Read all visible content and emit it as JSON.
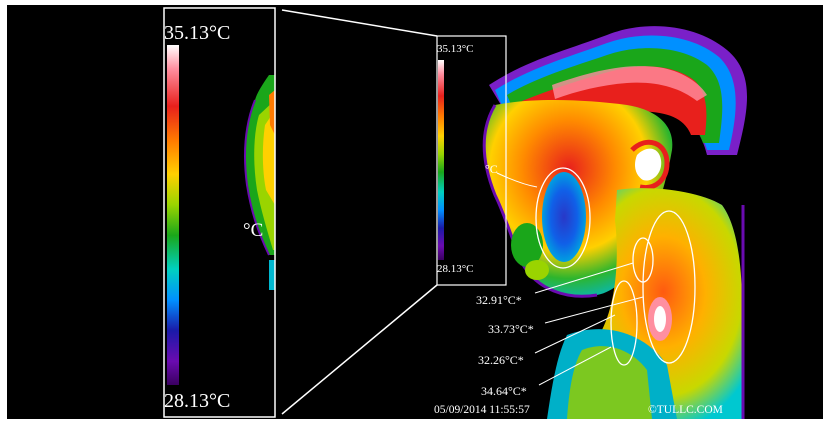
{
  "scale": {
    "max": "35.13°C",
    "min": "28.13°C",
    "colors": [
      "#ffffff",
      "#ff8fa0",
      "#e8201c",
      "#ff7a00",
      "#ffd000",
      "#9ad400",
      "#1aa61a",
      "#00d0c0",
      "#0090ff",
      "#1a1aa8",
      "#6a0bb0",
      "#3a0060"
    ]
  },
  "partial_label": "°C",
  "roi_readings": [
    "32.91°C*",
    "33.73°C*",
    "32.26°C*",
    "34.64°C*"
  ],
  "timestamp": "05/09/2014 11:55:57",
  "copyright": "©TULLC.COM"
}
